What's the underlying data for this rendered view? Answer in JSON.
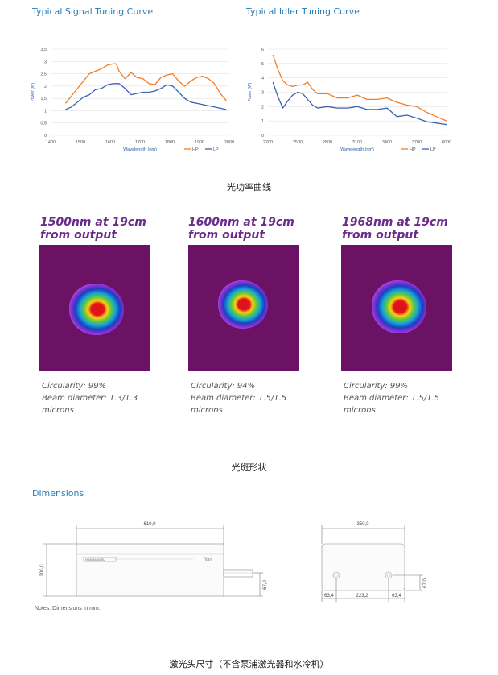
{
  "charts": {
    "signal": {
      "title": "Typical Signal Tuning Curve",
      "chart_data": {
        "type": "line",
        "title": "Typical Signal Tuning Curve",
        "xlabel": "Wavelength (nm)",
        "ylabel": "Power (W)",
        "xlim": [
          1400,
          2000
        ],
        "ylim": [
          0,
          3.5
        ],
        "xticks": [
          "1400",
          "1500",
          "1600",
          "1700",
          "1800",
          "1900",
          "2000"
        ],
        "yticks": [
          "0",
          "0,5",
          "1",
          "1,5",
          "2",
          "2,5",
          "3",
          "3,5"
        ],
        "legend": "bottom-right",
        "series": [
          {
            "name": "HP",
            "color": "#f07d2a",
            "x": [
              1450,
              1470,
              1490,
              1510,
              1530,
              1550,
              1570,
              1590,
              1610,
              1620,
              1630,
              1650,
              1670,
              1690,
              1710,
              1730,
              1750,
              1770,
              1790,
              1810,
              1830,
              1850,
              1870,
              1890,
              1910,
              1930,
              1950,
              1970,
              1990
            ],
            "y": [
              1.3,
              1.6,
              1.9,
              2.2,
              2.5,
              2.6,
              2.7,
              2.85,
              2.9,
              2.9,
              2.6,
              2.3,
              2.55,
              2.35,
              2.3,
              2.1,
              2.05,
              2.35,
              2.45,
              2.5,
              2.2,
              2.0,
              2.2,
              2.35,
              2.4,
              2.3,
              2.1,
              1.7,
              1.4
            ]
          },
          {
            "name": "LP",
            "color": "#3a62b5",
            "x": [
              1450,
              1470,
              1490,
              1510,
              1530,
              1550,
              1570,
              1590,
              1610,
              1630,
              1650,
              1670,
              1690,
              1710,
              1730,
              1750,
              1770,
              1790,
              1810,
              1830,
              1850,
              1870,
              1890,
              1910,
              1930,
              1950,
              1970,
              1990
            ],
            "y": [
              1.05,
              1.15,
              1.35,
              1.55,
              1.65,
              1.85,
              1.9,
              2.05,
              2.1,
              2.1,
              1.9,
              1.65,
              1.7,
              1.75,
              1.75,
              1.8,
              1.9,
              2.05,
              2.0,
              1.75,
              1.5,
              1.35,
              1.3,
              1.25,
              1.2,
              1.15,
              1.1,
              1.05
            ]
          }
        ]
      }
    },
    "idler": {
      "title": "Typical Idler Tuning Curve",
      "chart_data": {
        "type": "line",
        "title": "Typical Idler Tuning Curve",
        "xlabel": "Wavelength (nm)",
        "ylabel": "Power (W)",
        "xlim": [
          2200,
          4000
        ],
        "ylim": [
          0,
          6
        ],
        "xticks": [
          "2200",
          "2500",
          "2800",
          "3100",
          "3400",
          "3700",
          "4000"
        ],
        "yticks": [
          "0",
          "1",
          "2",
          "3",
          "4",
          "5",
          "6"
        ],
        "legend": "bottom-right",
        "series": [
          {
            "name": "HP",
            "color": "#f07d2a",
            "x": [
              2250,
              2300,
              2350,
              2400,
              2450,
              2500,
              2550,
              2600,
              2650,
              2700,
              2800,
              2900,
              3000,
              3100,
              3200,
              3300,
              3400,
              3500,
              3600,
              3700,
              3800,
              3900,
              4000
            ],
            "y": [
              5.6,
              4.6,
              3.8,
              3.5,
              3.4,
              3.5,
              3.5,
              3.7,
              3.2,
              2.9,
              2.9,
              2.6,
              2.6,
              2.8,
              2.5,
              2.5,
              2.6,
              2.3,
              2.1,
              2.0,
              1.6,
              1.3,
              1.0
            ]
          },
          {
            "name": "LP",
            "color": "#3a62b5",
            "x": [
              2250,
              2300,
              2350,
              2400,
              2450,
              2500,
              2550,
              2600,
              2650,
              2700,
              2800,
              2900,
              3000,
              3100,
              3200,
              3300,
              3400,
              3500,
              3600,
              3700,
              3800,
              3900,
              4000
            ],
            "y": [
              3.7,
              2.7,
              1.9,
              2.4,
              2.8,
              3.0,
              2.9,
              2.5,
              2.1,
              1.9,
              2.0,
              1.9,
              1.9,
              2.0,
              1.8,
              1.8,
              1.9,
              1.3,
              1.4,
              1.2,
              0.95,
              0.85,
              0.75
            ]
          }
        ]
      }
    }
  },
  "captions": {
    "power_curve": "光功率曲线",
    "beam_shape": "光斑形状",
    "head_size": "激光头尺寸（不含泵浦激光器和水冷机）"
  },
  "beams": [
    {
      "heading_line1": "1500nm at 19cm",
      "heading_line2": "from output",
      "circularity": "Circularity: 99%",
      "diameter": "Beam diameter: 1.3/1.3",
      "unit": "microns"
    },
    {
      "heading_line1": "1600nm at 19cm",
      "heading_line2": "from output",
      "circularity": "Circularity: 94%",
      "diameter": "Beam diameter: 1.5/1.5",
      "unit": "microns"
    },
    {
      "heading_line1": "1968nm at 19cm",
      "heading_line2": "from output",
      "circularity": "Circularity: 99%",
      "diameter": "Beam diameter: 1.5/1.5",
      "unit": "microns"
    }
  ],
  "dimensions": {
    "title": "Dimensions",
    "length": "610,0",
    "height": "200,0",
    "port_height": "67,0",
    "width": "350,0",
    "side_port_height": "67,0",
    "offset_left": "63,4",
    "center_spacing": "223,2",
    "offset_right": "63,4",
    "brand": "Titan",
    "label_plate": "HAMAMATSU",
    "notes": "Notes: Dimensions in mm."
  }
}
